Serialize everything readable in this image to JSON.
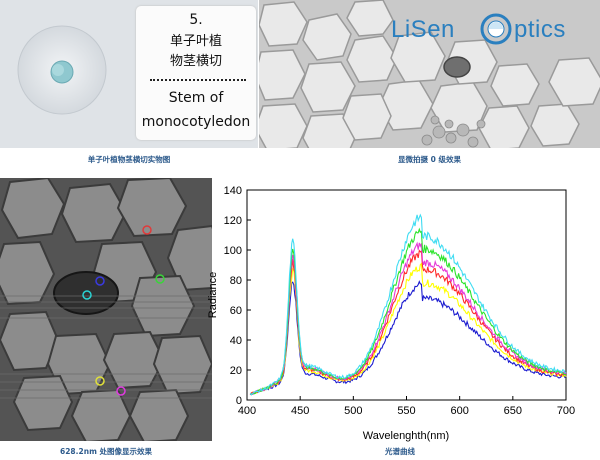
{
  "panels": {
    "slide_photo": {
      "caption": "单子叶植物茎横切实物图",
      "label_number": "5.",
      "label_cn_line1": "单子叶植",
      "label_cn_line2": "物茎横切",
      "label_en_line1": "Stem of",
      "label_en_line2": "monocotyledon"
    },
    "microscope": {
      "caption": "显微拍摄 0 级效果",
      "logo_left": "LiSen",
      "logo_right": "ptics"
    },
    "processed": {
      "caption": "628.2nm 处图像显示效果"
    },
    "spectrum": {
      "caption": "光谱曲线"
    }
  },
  "chart_data": {
    "type": "line",
    "xlabel": "Wavelenghth(nm)",
    "ylabel": "Radiance",
    "xlim": [
      400,
      700
    ],
    "ylim": [
      0,
      140
    ],
    "xticks": [
      400,
      450,
      500,
      550,
      600,
      650,
      700
    ],
    "yticks": [
      0,
      20,
      40,
      60,
      80,
      100,
      120,
      140
    ],
    "grid": false,
    "legend": "none",
    "series": [
      {
        "color": "#1b1bd0",
        "peak1": 73,
        "trough": 13,
        "peak2": 72,
        "end": 14
      },
      {
        "color": "#ffff00",
        "peak1": 79,
        "trough": 15,
        "peak2": 83,
        "end": 15
      },
      {
        "color": "#ff2a2a",
        "peak1": 85,
        "trough": 16,
        "peak2": 92,
        "end": 15
      },
      {
        "color": "#e63ad8",
        "peak1": 88,
        "trough": 17,
        "peak2": 97,
        "end": 16
      },
      {
        "color": "#2be32b",
        "peak1": 93,
        "trough": 17,
        "peak2": 106,
        "end": 16
      },
      {
        "color": "#3fdcf2",
        "peak1": 98,
        "trough": 18,
        "peak2": 115,
        "end": 17
      }
    ]
  }
}
